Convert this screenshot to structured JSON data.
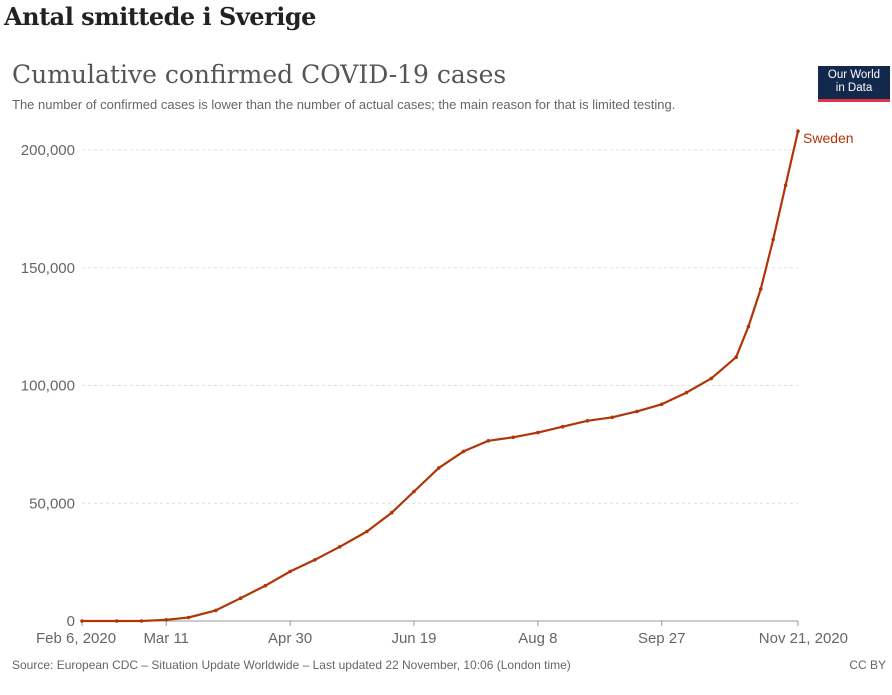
{
  "page_heading": "Antal smittede i Sverige",
  "logo": {
    "line1": "Our World",
    "line2": "in Data"
  },
  "footer": {
    "source": "Source: European CDC – Situation Update Worldwide – Last updated 22 November, 10:06 (London time)",
    "license": "CC BY"
  },
  "colors": {
    "series": "#b13507",
    "grid": "#dddddd",
    "logo_bg": "#12284c",
    "logo_accent": "#e0344a"
  },
  "chart_data": {
    "type": "line",
    "title": "Cumulative confirmed COVID-19 cases",
    "subtitle": "The number of confirmed cases is lower than the number of actual cases; the main reason for that is limited testing.",
    "xlabel": "",
    "ylabel": "",
    "x_start": "2020-02-06",
    "x_end": "2020-11-21",
    "x_ticks": [
      {
        "date": "2020-02-06",
        "label": "Feb 6, 2020"
      },
      {
        "date": "2020-03-11",
        "label": "Mar 11"
      },
      {
        "date": "2020-04-30",
        "label": "Apr 30"
      },
      {
        "date": "2020-06-19",
        "label": "Jun 19"
      },
      {
        "date": "2020-08-08",
        "label": "Aug 8"
      },
      {
        "date": "2020-09-27",
        "label": "Sep 27"
      },
      {
        "date": "2020-11-21",
        "label": "Nov 21, 2020"
      }
    ],
    "y_ticks": [
      {
        "value": 0,
        "label": "0"
      },
      {
        "value": 50000,
        "label": "50,000"
      },
      {
        "value": 100000,
        "label": "100,000"
      },
      {
        "value": 150000,
        "label": "150,000"
      },
      {
        "value": 200000,
        "label": "200,000"
      }
    ],
    "ylim": [
      0,
      200000
    ],
    "grid": true,
    "series": [
      {
        "name": "Sweden",
        "points": [
          [
            "2020-02-06",
            0
          ],
          [
            "2020-02-20",
            0
          ],
          [
            "2020-03-01",
            20
          ],
          [
            "2020-03-11",
            500
          ],
          [
            "2020-03-20",
            1500
          ],
          [
            "2020-03-31",
            4500
          ],
          [
            "2020-04-10",
            9700
          ],
          [
            "2020-04-20",
            15000
          ],
          [
            "2020-04-30",
            21000
          ],
          [
            "2020-05-10",
            26000
          ],
          [
            "2020-05-20",
            31500
          ],
          [
            "2020-05-31",
            38000
          ],
          [
            "2020-06-10",
            46000
          ],
          [
            "2020-06-19",
            55000
          ],
          [
            "2020-06-29",
            65000
          ],
          [
            "2020-07-09",
            72000
          ],
          [
            "2020-07-19",
            76500
          ],
          [
            "2020-07-29",
            78000
          ],
          [
            "2020-08-08",
            80000
          ],
          [
            "2020-08-18",
            82500
          ],
          [
            "2020-08-28",
            85000
          ],
          [
            "2020-09-07",
            86500
          ],
          [
            "2020-09-17",
            89000
          ],
          [
            "2020-09-27",
            92000
          ],
          [
            "2020-10-07",
            97000
          ],
          [
            "2020-10-17",
            103000
          ],
          [
            "2020-10-27",
            112000
          ],
          [
            "2020-11-01",
            125000
          ],
          [
            "2020-11-06",
            141000
          ],
          [
            "2020-11-11",
            162000
          ],
          [
            "2020-11-16",
            185000
          ],
          [
            "2020-11-21",
            208000
          ]
        ]
      }
    ]
  }
}
